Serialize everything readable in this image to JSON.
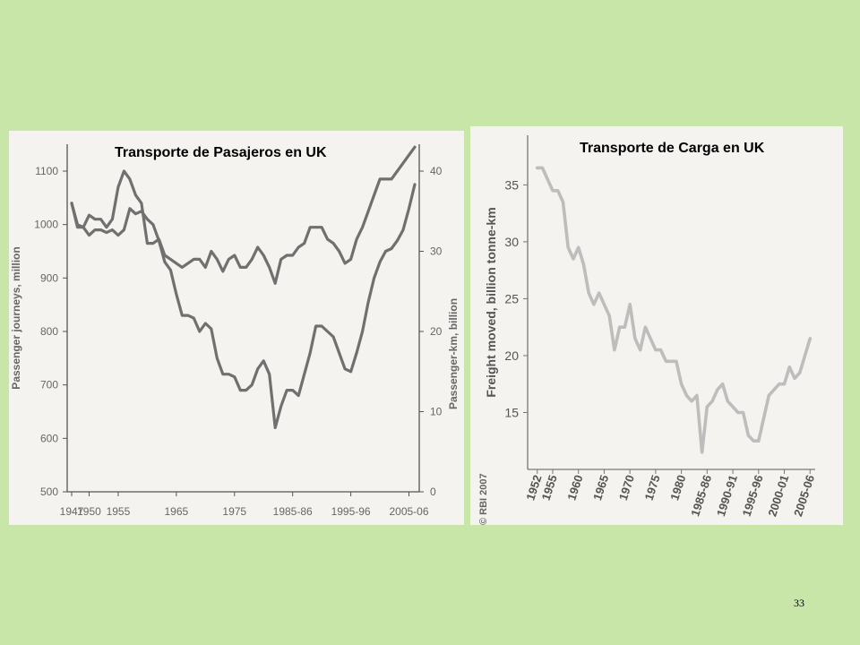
{
  "slide": {
    "number": "33"
  },
  "chart_data": [
    {
      "type": "line",
      "title": "Transporte de Pasajeros en UK",
      "ylabel": "Passenger journeys, million",
      "y2label": "Passenger-km, billion",
      "xlabel": "",
      "xtick_labels": [
        "1947",
        "1950",
        "1955",
        "1965",
        "1975",
        "1985-86",
        "1995-96",
        "2005-06"
      ],
      "xtick_values": [
        1947,
        1950,
        1955,
        1965,
        1975,
        1985,
        1995,
        2005
      ],
      "xlim": [
        1947,
        2006
      ],
      "ylim": [
        500,
        1100
      ],
      "yticks": [
        500,
        600,
        700,
        800,
        900,
        1000,
        1100
      ],
      "y2lim": [
        0,
        40
      ],
      "y2ticks": [
        0,
        10,
        20,
        30,
        40
      ],
      "grid": false,
      "line_color": "#707070",
      "series": [
        {
          "axis": "left",
          "x": [
            1947,
            1948,
            1949,
            1950,
            1951,
            1952,
            1953,
            1954,
            1955,
            1956,
            1957,
            1958,
            1959,
            1960,
            1961,
            1962,
            1963,
            1964,
            1965,
            1966,
            1967,
            1968,
            1969,
            1970,
            1971,
            1972,
            1973,
            1974,
            1975,
            1976,
            1977,
            1978,
            1979,
            1980,
            1981,
            1982,
            1983,
            1984,
            1985,
            1986,
            1987,
            1988,
            1989,
            1990,
            1991,
            1992,
            1993,
            1994,
            1995,
            1996,
            1997,
            1998,
            1999,
            2000,
            2001,
            2002,
            2003,
            2004,
            2005,
            2006
          ],
          "values": [
            1040,
            1000,
            995,
            980,
            990,
            990,
            985,
            990,
            980,
            990,
            1030,
            1020,
            1025,
            1010,
            1000,
            970,
            930,
            915,
            870,
            830,
            830,
            825,
            800,
            815,
            805,
            750,
            720,
            720,
            715,
            690,
            690,
            700,
            730,
            745,
            720,
            620,
            660,
            690,
            690,
            680,
            720,
            760,
            810,
            810,
            800,
            790,
            760,
            730,
            725,
            760,
            800,
            855,
            900,
            930,
            950,
            955,
            970,
            990,
            1030,
            1075
          ]
        },
        {
          "axis": "right",
          "x": [
            1947,
            1948,
            1949,
            1950,
            1951,
            1952,
            1953,
            1954,
            1955,
            1956,
            1957,
            1958,
            1959,
            1960,
            1961,
            1962,
            1963,
            1964,
            1965,
            1966,
            1967,
            1968,
            1969,
            1970,
            1971,
            1972,
            1973,
            1974,
            1975,
            1976,
            1977,
            1978,
            1979,
            1980,
            1981,
            1982,
            1983,
            1984,
            1985,
            1986,
            1987,
            1988,
            1989,
            1990,
            1991,
            1992,
            1993,
            1994,
            1995,
            1996,
            1997,
            1998,
            1999,
            2000,
            2001,
            2002,
            2003,
            2004,
            2005,
            2006
          ],
          "values": [
            36,
            33,
            33,
            34.5,
            34,
            34,
            33,
            34,
            38,
            40,
            39,
            37,
            36,
            31,
            31,
            31.5,
            29.5,
            29,
            28.5,
            28,
            28.5,
            29,
            29,
            28,
            30,
            29,
            27.5,
            29,
            29.5,
            28,
            28,
            29,
            30.5,
            29.5,
            28,
            26,
            29,
            29.5,
            29.5,
            30.5,
            31,
            33,
            33,
            33,
            31.5,
            31,
            30,
            28.5,
            29,
            31.5,
            33,
            35,
            37,
            39,
            39,
            39,
            40,
            41,
            42,
            43
          ]
        }
      ]
    },
    {
      "type": "line",
      "title": "Transporte de Carga en UK",
      "ylabel": "Freight moved, billion tonne-km",
      "xlabel": "",
      "xtick_labels": [
        "1952",
        "1955",
        "1960",
        "1965",
        "1970",
        "1975",
        "1980",
        "1985-86",
        "1990-91",
        "1995-96",
        "2000-01",
        "2005-06"
      ],
      "xtick_values": [
        1952,
        1955,
        1960,
        1965,
        1970,
        1975,
        1980,
        1985,
        1990,
        1995,
        2000,
        2005
      ],
      "xlim": [
        1951,
        2006
      ],
      "ylim": [
        10,
        37
      ],
      "yticks": [
        15,
        20,
        25,
        30,
        35
      ],
      "grid": false,
      "copyright": "© RBI 2007",
      "line_color": "#bdbdbd",
      "series": [
        {
          "x": [
            1952,
            1953,
            1954,
            1955,
            1956,
            1957,
            1958,
            1959,
            1960,
            1961,
            1962,
            1963,
            1964,
            1965,
            1966,
            1967,
            1968,
            1969,
            1970,
            1971,
            1972,
            1973,
            1974,
            1975,
            1976,
            1977,
            1978,
            1979,
            1980,
            1981,
            1982,
            1983,
            1984,
            1985,
            1986,
            1987,
            1988,
            1989,
            1990,
            1991,
            1992,
            1993,
            1994,
            1995,
            1996,
            1997,
            1998,
            1999,
            2000,
            2001,
            2002,
            2003,
            2004,
            2005
          ],
          "values": [
            36.5,
            36.5,
            35.5,
            34.5,
            34.5,
            33.5,
            29.5,
            28.5,
            29.5,
            28,
            25.5,
            24.5,
            25.5,
            24.5,
            23.5,
            20.5,
            22.5,
            22.5,
            24.5,
            21.5,
            20.5,
            22.5,
            21.5,
            20.5,
            20.5,
            19.5,
            19.5,
            19.5,
            17.5,
            16.5,
            16,
            16.5,
            11.5,
            15.5,
            16,
            17,
            17.5,
            16,
            15.5,
            15,
            15,
            13,
            12.5,
            12.5,
            14.5,
            16.5,
            17,
            17.5,
            17.5,
            19,
            18,
            18.5,
            20,
            21.5
          ]
        }
      ]
    }
  ]
}
